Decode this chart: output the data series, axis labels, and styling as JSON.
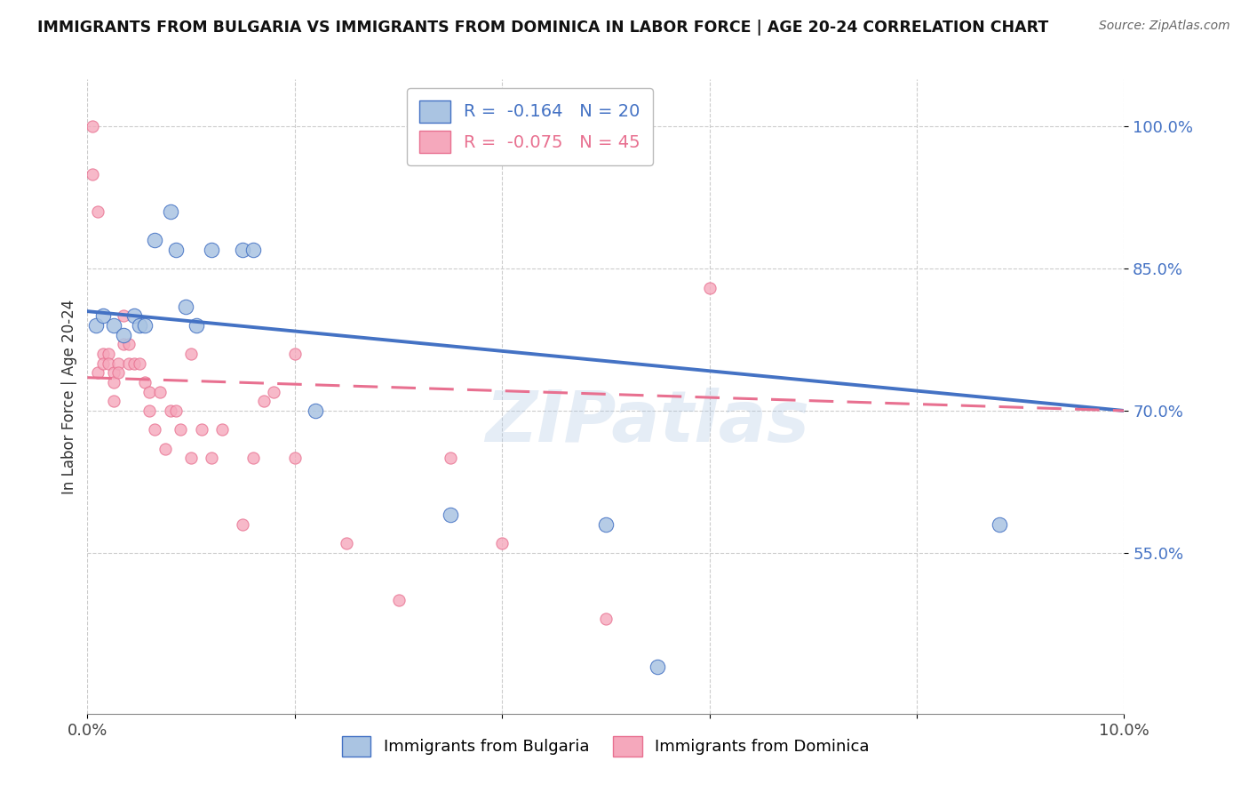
{
  "title": "IMMIGRANTS FROM BULGARIA VS IMMIGRANTS FROM DOMINICA IN LABOR FORCE | AGE 20-24 CORRELATION CHART",
  "source": "Source: ZipAtlas.com",
  "ylabel": "In Labor Force | Age 20-24",
  "xlim": [
    0.0,
    10.0
  ],
  "ylim": [
    38.0,
    105.0
  ],
  "yticks": [
    55.0,
    70.0,
    85.0,
    100.0
  ],
  "xticks": [
    0.0,
    2.0,
    4.0,
    6.0,
    8.0,
    10.0
  ],
  "legend_bulgaria": "R =  -0.164   N = 20",
  "legend_dominica": "R =  -0.075   N = 45",
  "color_bulgaria": "#aac4e2",
  "color_dominica": "#f5a8bc",
  "line_bulgaria": "#4472c4",
  "line_dominica": "#e87090",
  "watermark": "ZIPatlas",
  "bulgaria_x": [
    0.08,
    0.15,
    0.25,
    0.35,
    0.45,
    0.5,
    0.55,
    0.65,
    0.8,
    0.85,
    0.95,
    1.05,
    1.2,
    1.5,
    1.6,
    2.2,
    3.5,
    5.0,
    5.5,
    8.8
  ],
  "bulgaria_y": [
    79,
    80,
    79,
    78,
    80,
    79,
    79,
    88,
    91,
    87,
    81,
    79,
    87,
    87,
    87,
    70,
    59,
    58,
    43,
    58
  ],
  "dominica_x": [
    0.05,
    0.05,
    0.1,
    0.1,
    0.15,
    0.15,
    0.2,
    0.2,
    0.25,
    0.25,
    0.25,
    0.3,
    0.3,
    0.35,
    0.35,
    0.4,
    0.4,
    0.45,
    0.5,
    0.55,
    0.6,
    0.6,
    0.65,
    0.7,
    0.75,
    0.8,
    0.85,
    0.9,
    1.0,
    1.0,
    1.1,
    1.2,
    1.3,
    1.5,
    1.6,
    1.7,
    1.8,
    2.0,
    2.0,
    2.5,
    3.0,
    3.5,
    4.0,
    5.0,
    6.0
  ],
  "dominica_y": [
    100,
    95,
    91,
    74,
    76,
    75,
    76,
    75,
    74,
    73,
    71,
    75,
    74,
    80,
    77,
    77,
    75,
    75,
    75,
    73,
    72,
    70,
    68,
    72,
    66,
    70,
    70,
    68,
    76,
    65,
    68,
    65,
    68,
    58,
    65,
    71,
    72,
    76,
    65,
    56,
    50,
    65,
    56,
    48,
    83
  ],
  "bulgaria_line_x": [
    0.0,
    10.0
  ],
  "bulgaria_line_y": [
    80.5,
    70.0
  ],
  "dominica_line_x": [
    0.0,
    10.0
  ],
  "dominica_line_y": [
    73.5,
    70.0
  ],
  "marker_size_bulgaria": 140,
  "marker_size_dominica": 90
}
